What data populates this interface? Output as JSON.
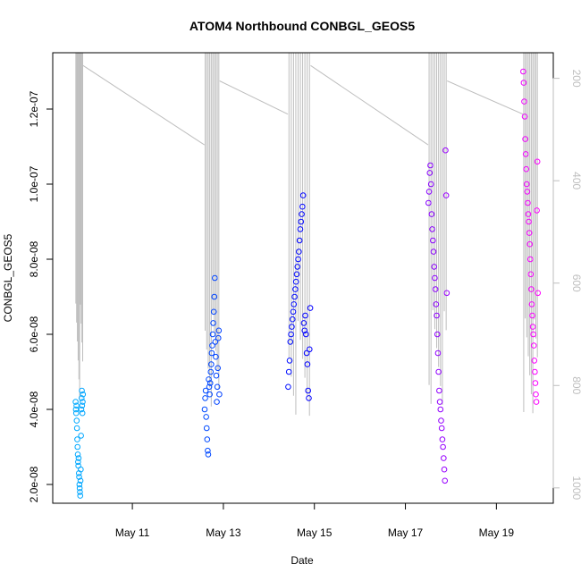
{
  "chart_data": {
    "type": "scatter",
    "title": "ATOM4 Northbound CONBGL_GEOS5",
    "xlabel": "Date",
    "ylabel": "CONBGL_GEOS5",
    "x_axis": {
      "type": "date",
      "range": [
        "2016-05-09T06:00",
        "2016-05-20T06:00"
      ],
      "ticks": [
        "2016-05-11",
        "2016-05-13",
        "2016-05-15",
        "2016-05-17",
        "2016-05-19"
      ],
      "tick_labels": [
        "May 11",
        "May 13",
        "May 15",
        "May 17",
        "May 19"
      ]
    },
    "y_axis": {
      "range": [
        1.5e-08,
        1.35e-07
      ],
      "ticks": [
        2e-08,
        4e-08,
        6e-08,
        8e-08,
        1e-07,
        1.2e-07
      ],
      "tick_labels": [
        "2.0e-08",
        "4.0e-08",
        "6.0e-08",
        "8.0e-08",
        "1.0e-07",
        "1.2e-07"
      ]
    },
    "y2_axis": {
      "quantity": "pressure",
      "reversed": true,
      "range": [
        150,
        1030
      ],
      "ticks": [
        200,
        400,
        600,
        800,
        1000
      ],
      "tick_labels": [
        "200",
        "400",
        "600",
        "800",
        "1000"
      ],
      "color": "#bebebe"
    },
    "grid": false,
    "color_gradient": [
      "#00aaff",
      "#0000ff",
      "#ff00ff"
    ],
    "pressure_line_color": "#bebebe",
    "series": [
      {
        "label_date": "2016-05-09",
        "time_range": [
          "2016-05-09T18:00",
          "2016-05-09T22:00"
        ],
        "values": [
          4.2e-08,
          4e-08,
          3.9e-08,
          4.1e-08,
          3.7e-08,
          3.5e-08,
          3.2e-08,
          3e-08,
          2.8e-08,
          2.6e-08,
          2.5e-08,
          2.7e-08,
          2.3e-08,
          2.2e-08,
          2e-08,
          1.9e-08,
          1.8e-08,
          1.7e-08,
          2.1e-08,
          2.4e-08,
          3.3e-08,
          4e-08,
          4.3e-08,
          4.5e-08,
          4.1e-08,
          3.9e-08,
          4.2e-08,
          4.4e-08
        ]
      },
      {
        "label_date": "2016-05-12",
        "time_range": [
          "2016-05-12T14:00",
          "2016-05-12T22:00"
        ],
        "values": [
          4e-08,
          4.3e-08,
          4.5e-08,
          3.8e-08,
          3.5e-08,
          3.2e-08,
          2.9e-08,
          2.8e-08,
          4.8e-08,
          4.6e-08,
          4.4e-08,
          4.7e-08,
          5e-08,
          5.2e-08,
          5.5e-08,
          5.7e-08,
          6e-08,
          6.3e-08,
          6.6e-08,
          7e-08,
          7.5e-08,
          5.8e-08,
          5.4e-08,
          4.9e-08,
          4.2e-08,
          4.6e-08,
          5.1e-08,
          5.9e-08,
          6.1e-08,
          4.4e-08
        ]
      },
      {
        "label_date": "2016-05-14",
        "time_range": [
          "2016-05-14T10:00",
          "2016-05-14T22:00"
        ],
        "values": [
          4.6e-08,
          5e-08,
          5.3e-08,
          5.8e-08,
          6e-08,
          6.2e-08,
          6.4e-08,
          6.6e-08,
          6.8e-08,
          7e-08,
          7.2e-08,
          7.4e-08,
          7.6e-08,
          7.8e-08,
          8e-08,
          8.2e-08,
          8.5e-08,
          8.8e-08,
          9e-08,
          9.2e-08,
          9.4e-08,
          9.7e-08,
          6.3e-08,
          6.1e-08,
          6.5e-08,
          6e-08,
          5.5e-08,
          5.2e-08,
          4.5e-08,
          4.3e-08,
          5.6e-08,
          6.7e-08
        ]
      },
      {
        "label_date": "2016-05-17",
        "time_range": [
          "2016-05-17T12:00",
          "2016-05-17T22:00"
        ],
        "values": [
          9.5e-08,
          9.8e-08,
          1.03e-07,
          1.05e-07,
          1e-07,
          9.2e-08,
          8.8e-08,
          8.5e-08,
          8.2e-08,
          7.8e-08,
          7.5e-08,
          7.2e-08,
          6.8e-08,
          6.5e-08,
          6e-08,
          5.5e-08,
          5e-08,
          4.5e-08,
          4.2e-08,
          4e-08,
          3.7e-08,
          3.5e-08,
          3.2e-08,
          3e-08,
          2.7e-08,
          2.4e-08,
          2.1e-08,
          1.09e-07,
          9.7e-08,
          7.1e-08
        ]
      },
      {
        "label_date": "2016-05-19",
        "time_range": [
          "2016-05-19T14:00",
          "2016-05-19T22:00"
        ],
        "values": [
          1.3e-07,
          1.27e-07,
          1.22e-07,
          1.18e-07,
          1.12e-07,
          1.08e-07,
          1.04e-07,
          1e-07,
          9.8e-08,
          9.5e-08,
          9.2e-08,
          9e-08,
          8.7e-08,
          8.4e-08,
          8e-08,
          7.6e-08,
          7.2e-08,
          6.8e-08,
          6.5e-08,
          6.2e-08,
          6e-08,
          5.7e-08,
          5.3e-08,
          5e-08,
          4.7e-08,
          4.4e-08,
          4.2e-08,
          9.3e-08,
          1.06e-07,
          7.1e-08
        ]
      }
    ]
  }
}
